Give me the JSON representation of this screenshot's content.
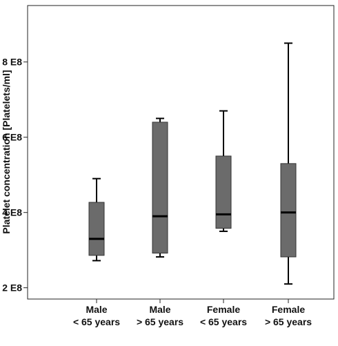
{
  "chart_data": {
    "type": "box",
    "title": "",
    "xlabel": "",
    "ylabel": "Platelet concentration [Platelets/ml]",
    "ylim": [
      170000000,
      950000000
    ],
    "yticks": [
      {
        "value": 200000000,
        "label": "2 E8"
      },
      {
        "value": 400000000,
        "label": "4 E8"
      },
      {
        "value": 600000000,
        "label": "6 E8"
      },
      {
        "value": 800000000,
        "label": "8 E8"
      }
    ],
    "categories": [
      {
        "line1": "Male",
        "line2": "< 65 years"
      },
      {
        "line1": "Male",
        "line2": "> 65 years"
      },
      {
        "line1": "Female",
        "line2": "< 65 years"
      },
      {
        "line1": "Female",
        "line2": "> 65 years"
      }
    ],
    "boxes": [
      {
        "min": 272000000,
        "q1": 286000000,
        "median": 330000000,
        "q3": 427000000,
        "max": 490000000
      },
      {
        "min": 282000000,
        "q1": 292000000,
        "median": 390000000,
        "q3": 640000000,
        "max": 650000000
      },
      {
        "min": 350000000,
        "q1": 358000000,
        "median": 395000000,
        "q3": 550000000,
        "max": 670000000
      },
      {
        "min": 210000000,
        "q1": 282000000,
        "median": 400000000,
        "q3": 530000000,
        "max": 850000000
      }
    ],
    "box_color": "#6b6b6b",
    "line_color": "#000000",
    "grid": false
  }
}
